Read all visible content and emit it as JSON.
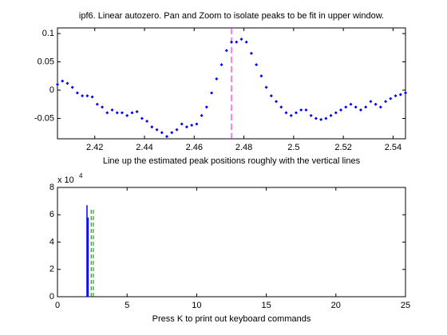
{
  "chart_data": [
    {
      "type": "scatter",
      "title": "ipf6. Linear autozero. Pan and Zoom to isolate peaks to be fit in upper window.",
      "xlabel": "Line up the estimated peak positions roughly with the vertical lines",
      "color": "#0000ff",
      "x": [
        2.405,
        2.407,
        2.409,
        2.411,
        2.413,
        2.415,
        2.417,
        2.419,
        2.421,
        2.423,
        2.425,
        2.427,
        2.429,
        2.431,
        2.433,
        2.435,
        2.437,
        2.439,
        2.441,
        2.443,
        2.445,
        2.447,
        2.449,
        2.451,
        2.453,
        2.455,
        2.457,
        2.459,
        2.461,
        2.463,
        2.465,
        2.467,
        2.469,
        2.471,
        2.473,
        2.475,
        2.477,
        2.479,
        2.481,
        2.483,
        2.485,
        2.487,
        2.489,
        2.491,
        2.493,
        2.495,
        2.497,
        2.499,
        2.501,
        2.503,
        2.505,
        2.507,
        2.509,
        2.511,
        2.513,
        2.515,
        2.517,
        2.519,
        2.521,
        2.523,
        2.525,
        2.527,
        2.529,
        2.531,
        2.533,
        2.535,
        2.537,
        2.539,
        2.541,
        2.543,
        2.545
      ],
      "values": [
        0.01,
        0.016,
        0.012,
        0.005,
        -0.005,
        -0.01,
        -0.01,
        -0.012,
        -0.025,
        -0.03,
        -0.04,
        -0.035,
        -0.04,
        -0.04,
        -0.045,
        -0.04,
        -0.038,
        -0.05,
        -0.055,
        -0.065,
        -0.07,
        -0.075,
        -0.082,
        -0.075,
        -0.07,
        -0.06,
        -0.065,
        -0.062,
        -0.06,
        -0.045,
        -0.03,
        -0.005,
        0.02,
        0.045,
        0.07,
        0.085,
        0.085,
        0.09,
        0.085,
        0.065,
        0.045,
        0.025,
        0.005,
        -0.01,
        -0.02,
        -0.03,
        -0.04,
        -0.045,
        -0.04,
        -0.035,
        -0.035,
        -0.045,
        -0.05,
        -0.052,
        -0.05,
        -0.045,
        -0.04,
        -0.035,
        -0.03,
        -0.025,
        -0.03,
        -0.035,
        -0.03,
        -0.02,
        -0.025,
        -0.03,
        -0.02,
        -0.015,
        -0.01,
        -0.008,
        -0.005
      ],
      "vlines": {
        "x": [
          2.475
        ],
        "color": "#ff00ff"
      },
      "xlim": [
        2.405,
        2.545
      ],
      "xticks": [
        2.42,
        2.44,
        2.46,
        2.48,
        2.5,
        2.52,
        2.54
      ],
      "ylim": [
        -0.086,
        0.11
      ],
      "yticks": [
        -0.05,
        0,
        0.05,
        0.1
      ]
    },
    {
      "type": "stem",
      "xlabel": "Press K to print out keyboard commands",
      "y_exponent": {
        "base": "x 10",
        "power": "4"
      },
      "series": [
        {
          "color": "#0000ff",
          "dash": false,
          "x": [
            2.12,
            2.2
          ],
          "values": [
            67000,
            58000
          ]
        },
        {
          "color": "#008000",
          "dash": true,
          "x": [
            2.42,
            2.58
          ],
          "values": [
            65000,
            65000
          ]
        }
      ],
      "xlim": [
        0,
        25
      ],
      "xticks": [
        0,
        5,
        10,
        15,
        20,
        25
      ],
      "ylim": [
        0,
        80000
      ],
      "yticks": [
        0,
        {
          "value": 20000,
          "label": "2"
        },
        {
          "value": 40000,
          "label": "4"
        },
        {
          "value": 60000,
          "label": "6"
        },
        {
          "value": 80000,
          "label": "8"
        }
      ]
    }
  ]
}
